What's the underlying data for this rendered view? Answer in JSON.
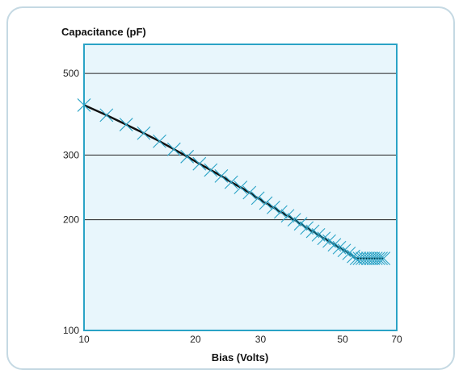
{
  "chart_data": {
    "type": "line",
    "title": "",
    "ylabel": "Capacitance (pF)",
    "xlabel": "Bias (Volts)",
    "x_scale": "log",
    "y_scale": "log",
    "xlim": [
      10,
      70
    ],
    "ylim": [
      100,
      600
    ],
    "x_ticks": [
      {
        "value": 10,
        "label": "10"
      },
      {
        "value": 20,
        "label": "20"
      },
      {
        "value": 30,
        "label": "30"
      },
      {
        "value": 50,
        "label": "50"
      },
      {
        "value": 70,
        "label": "70"
      }
    ],
    "y_ticks": [
      {
        "value": 100,
        "label": "100"
      },
      {
        "value": 200,
        "label": "200"
      },
      {
        "value": 300,
        "label": "300"
      },
      {
        "value": 500,
        "label": "500"
      }
    ],
    "grid": {
      "horizontal": true,
      "vertical": false
    },
    "series": [
      {
        "marker": "x",
        "x": [
          10,
          11.5,
          13,
          14.5,
          16,
          17.5,
          19,
          20.5,
          22,
          23.5,
          25,
          26.5,
          28,
          29.5,
          31,
          32.5,
          34,
          35.5,
          37,
          38.5,
          40,
          41.5,
          43,
          44.5,
          46,
          47.5,
          49,
          50.5,
          52,
          53.5,
          54.5,
          55.5,
          56.5,
          57.5,
          58.5,
          59.5,
          60.5,
          61.5,
          62.5,
          63.5,
          64.5
        ],
        "values": [
          410,
          385,
          363,
          344,
          327,
          311,
          297,
          284,
          273,
          263,
          253,
          245,
          237,
          229,
          222,
          216,
          210,
          205,
          200,
          195,
          190,
          186,
          182,
          178,
          175,
          171,
          168,
          165,
          162,
          159,
          157,
          157,
          157,
          157,
          157,
          157,
          157,
          157,
          157,
          157,
          157
        ]
      }
    ],
    "colors": {
      "plot_background": "#e8f6fc",
      "plot_border": "#2aa3c6",
      "marker": "#2aa3c6",
      "line": "#111111",
      "gridline": "#222222"
    }
  }
}
